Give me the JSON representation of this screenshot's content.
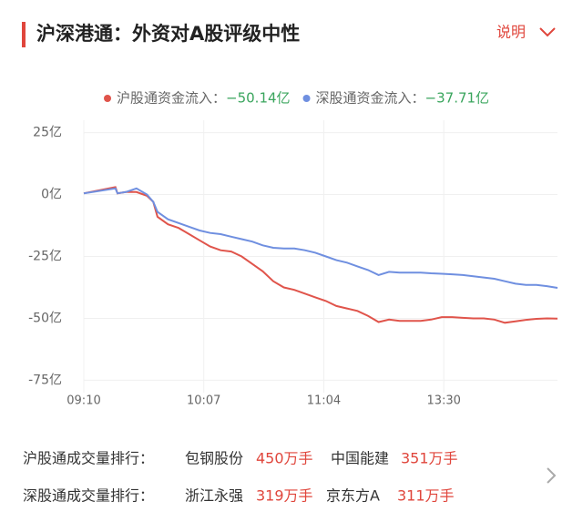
{
  "header": {
    "title": "沪深港通：外资对A股评级中性",
    "link": "说明"
  },
  "chart_data": {
    "type": "line",
    "x": [
      0,
      15,
      16,
      20,
      25,
      30,
      33,
      35,
      40,
      45,
      50,
      55,
      60,
      65,
      70,
      75,
      80,
      85,
      90,
      95,
      100,
      105,
      110,
      115,
      120,
      125,
      130,
      135,
      140,
      145,
      150,
      155,
      160,
      165,
      170,
      175,
      180,
      185,
      190,
      195,
      200,
      205,
      210,
      215,
      220,
      225
    ],
    "series": [
      {
        "name": "沪股通资金流入：",
        "summary": "−50.14亿",
        "color": "#e0544b",
        "values": [
          0.5,
          3,
          0.5,
          1,
          1,
          -0.5,
          -3,
          -9,
          -12,
          -13.5,
          -16,
          -18.5,
          -21,
          -22.5,
          -23,
          -25,
          -28,
          -31,
          -35,
          -37.5,
          -38.5,
          -40,
          -41.5,
          -43,
          -45,
          -46,
          -47,
          -49,
          -51.5,
          -50.5,
          -51,
          -51,
          -51,
          -50.5,
          -49.5,
          -49.5,
          -49.8,
          -50,
          -50,
          -50.5,
          -51.8,
          -51.2,
          -50.6,
          -50.2,
          -50,
          -50.14
        ]
      },
      {
        "name": "深股通资金流入：",
        "summary": "−37.71亿",
        "color": "#6f8fe0",
        "values": [
          0.5,
          2.5,
          0.5,
          1,
          2.5,
          0,
          -3,
          -7,
          -10,
          -11.5,
          -13,
          -14.5,
          -15.5,
          -16,
          -17,
          -18,
          -19,
          -20.5,
          -21.5,
          -21.8,
          -21.8,
          -22.5,
          -23.5,
          -25,
          -26.5,
          -27.5,
          -29,
          -30.5,
          -32.5,
          -31.2,
          -31.5,
          -31.5,
          -31.5,
          -31.8,
          -32,
          -32.2,
          -32.5,
          -33,
          -33.5,
          -34,
          -35,
          -36,
          -36.5,
          -36.5,
          -37,
          -37.71
        ]
      }
    ],
    "summary_color": "#3aa55d",
    "xlim": [
      0,
      225
    ],
    "xticks": [
      {
        "value": 0,
        "label": "09:10"
      },
      {
        "value": 57,
        "label": "10:07"
      },
      {
        "value": 114,
        "label": "11:04"
      },
      {
        "value": 171,
        "label": "13:30"
      }
    ],
    "ylim": [
      -80,
      30
    ],
    "yticks": [
      {
        "value": 25,
        "label": "25亿"
      },
      {
        "value": 0,
        "label": "0亿"
      },
      {
        "value": -25,
        "label": "-25亿"
      },
      {
        "value": -50,
        "label": "-50亿"
      },
      {
        "value": -75,
        "label": "-75亿"
      }
    ],
    "grid": true
  },
  "footer": {
    "rows": [
      {
        "label": "沪股通成交量排行：",
        "items": [
          {
            "name": "包钢股份",
            "volume": "450万手"
          },
          {
            "name": "中国能建",
            "volume": "351万手"
          }
        ]
      },
      {
        "label": "深股通成交量排行：",
        "items": [
          {
            "name": "浙江永强",
            "volume": "319万手"
          },
          {
            "name": "京东方A",
            "volume": "311万手"
          }
        ]
      }
    ]
  }
}
